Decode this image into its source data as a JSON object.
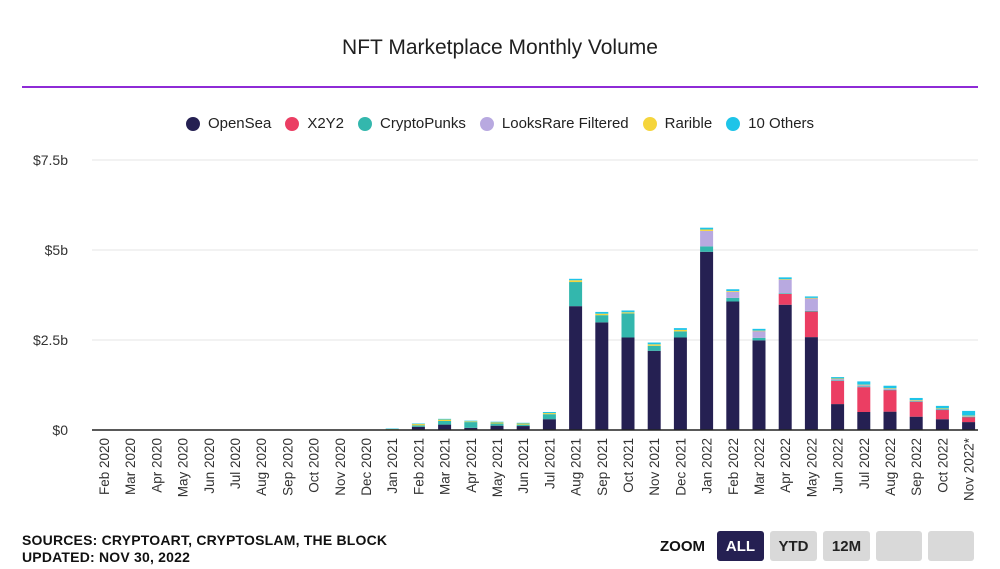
{
  "colors": {
    "accent_rule": "#8e2bd6",
    "series": [
      "#252052",
      "#eb3e63",
      "#33b7ad",
      "#b8a9e0",
      "#f5d53c",
      "#1ec4e8"
    ]
  },
  "chart_data": {
    "type": "bar",
    "stacked": true,
    "title": "NFT Marketplace Monthly Volume",
    "xlabel": "",
    "ylabel": "",
    "ylim": [
      0,
      7.5
    ],
    "yticks": [
      {
        "value": 0,
        "label": "$0"
      },
      {
        "value": 2.5,
        "label": "$2.5b"
      },
      {
        "value": 5,
        "label": "$5b"
      },
      {
        "value": 7.5,
        "label": "$7.5b"
      }
    ],
    "grid": true,
    "legend_position": "top-center",
    "categories": [
      "Feb 2020",
      "Mar 2020",
      "Apr 2020",
      "May 2020",
      "Jun 2020",
      "Jul 2020",
      "Aug 2020",
      "Sep 2020",
      "Oct 2020",
      "Nov 2020",
      "Dec 2020",
      "Jan 2021",
      "Feb 2021",
      "Mar 2021",
      "Apr 2021",
      "May 2021",
      "Jun 2021",
      "Jul 2021",
      "Aug 2021",
      "Sep 2021",
      "Oct 2021",
      "Nov 2021",
      "Dec 2021",
      "Jan 2022",
      "Feb 2022",
      "Mar 2022",
      "Apr 2022",
      "May 2022",
      "Jun 2022",
      "Jul 2022",
      "Aug 2022",
      "Sep 2022",
      "Oct 2022",
      "Nov 2022*"
    ],
    "series": [
      {
        "name": "OpenSea",
        "values": [
          0.003,
          0.003,
          0.003,
          0.004,
          0.004,
          0.005,
          0.007,
          0.01,
          0.01,
          0.01,
          0.01,
          0.01,
          0.09,
          0.15,
          0.06,
          0.12,
          0.11,
          0.3,
          3.44,
          2.99,
          2.57,
          2.2,
          2.57,
          4.95,
          3.57,
          2.49,
          3.48,
          2.58,
          0.72,
          0.5,
          0.51,
          0.37,
          0.3,
          0.22
        ]
      },
      {
        "name": "X2Y2",
        "values": [
          0,
          0,
          0,
          0,
          0,
          0,
          0,
          0,
          0,
          0,
          0,
          0,
          0,
          0,
          0,
          0,
          0,
          0,
          0,
          0,
          0,
          0,
          0,
          0,
          0,
          0,
          0.3,
          0.71,
          0.65,
          0.69,
          0.6,
          0.42,
          0.26,
          0.14
        ]
      },
      {
        "name": "CryptoPunks",
        "values": [
          0,
          0,
          0,
          0,
          0,
          0,
          0,
          0,
          0,
          0,
          0,
          0.01,
          0.04,
          0.1,
          0.16,
          0.06,
          0.04,
          0.14,
          0.67,
          0.2,
          0.67,
          0.14,
          0.17,
          0.15,
          0.1,
          0.07,
          0.02,
          0.02,
          0.01,
          0.02,
          0.01,
          0.01,
          0.01,
          0.01
        ]
      },
      {
        "name": "LooksRare Filtered",
        "values": [
          0,
          0,
          0,
          0,
          0,
          0,
          0,
          0,
          0,
          0,
          0,
          0,
          0,
          0,
          0,
          0,
          0,
          0,
          0,
          0,
          0,
          0,
          0,
          0.43,
          0.17,
          0.19,
          0.38,
          0.35,
          0.04,
          0.04,
          0.03,
          0.02,
          0.02,
          0.02
        ]
      },
      {
        "name": "Rarible",
        "values": [
          0,
          0,
          0,
          0,
          0,
          0,
          0,
          0,
          0,
          0,
          0,
          0.01,
          0.04,
          0.04,
          0.02,
          0.03,
          0.03,
          0.03,
          0.05,
          0.04,
          0.03,
          0.04,
          0.04,
          0.04,
          0.02,
          0.01,
          0.01,
          0.01,
          0.01,
          0.01,
          0.01,
          0.01,
          0.01,
          0.01
        ]
      },
      {
        "name": "10 Others",
        "values": [
          0,
          0,
          0,
          0,
          0,
          0,
          0,
          0,
          0,
          0,
          0,
          0.01,
          0.01,
          0.02,
          0.02,
          0.02,
          0.02,
          0.03,
          0.04,
          0.05,
          0.05,
          0.05,
          0.05,
          0.05,
          0.05,
          0.05,
          0.05,
          0.04,
          0.04,
          0.09,
          0.07,
          0.06,
          0.07,
          0.13
        ]
      }
    ]
  },
  "footer": {
    "sources": "SOURCES: CRYPTOART, CRYPTOSLAM, THE BLOCK",
    "updated": "UPDATED: NOV 30, 2022"
  },
  "zoom": {
    "label": "ZOOM",
    "buttons": [
      "ALL",
      "YTD",
      "12M",
      "",
      ""
    ],
    "active": "ALL"
  }
}
